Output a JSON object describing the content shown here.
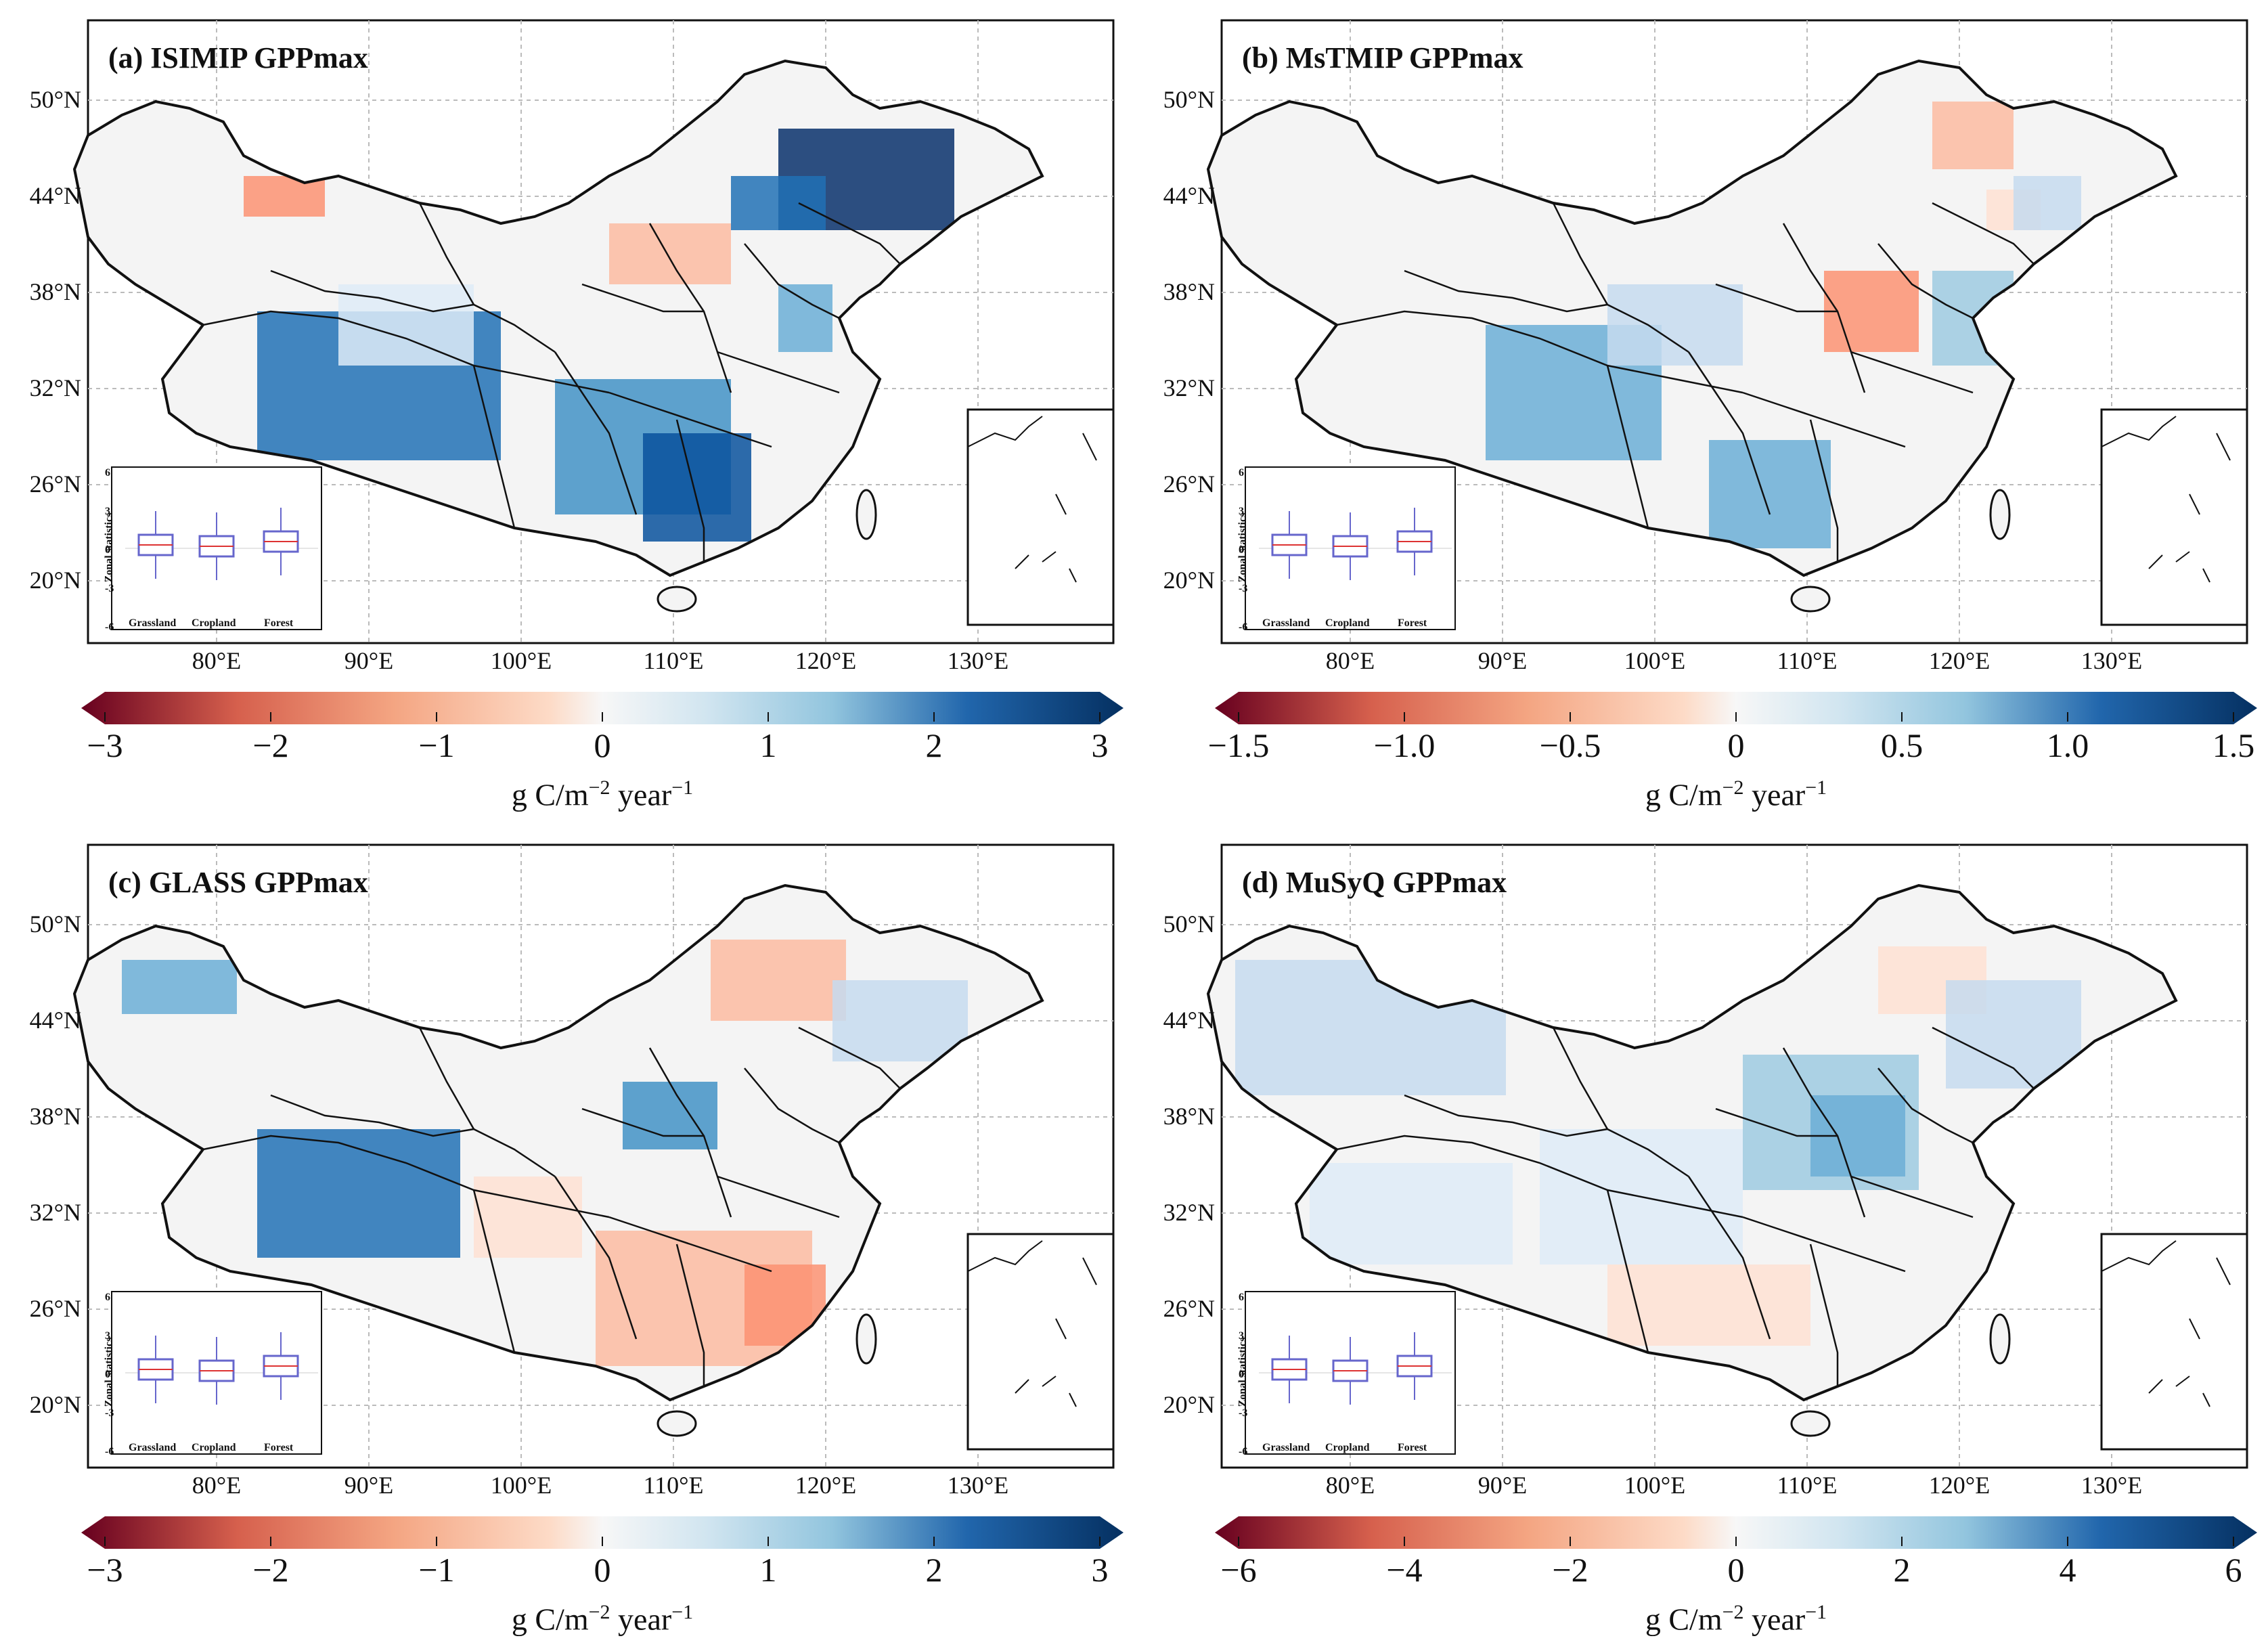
{
  "panels": [
    {
      "id": "a",
      "title": "(a) ISIMIP GPPmax",
      "lat_labels": [
        "50°N",
        "44°N",
        "38°N",
        "32°N",
        "26°N",
        "20°N"
      ],
      "lon_labels": [
        "80°E",
        "90°E",
        "100°E",
        "110°E",
        "120°E",
        "130°E"
      ],
      "colorbar": {
        "ticks": [
          "−3",
          "−2",
          "−1",
          "0",
          "1",
          "2",
          "3"
        ],
        "unit": "g C/m",
        "unit_exp": "−2",
        "unit_tail": " year",
        "unit_tail_exp": "−1"
      },
      "boxplot": {
        "ylabel": "Zonal statistics",
        "yticks": [
          "6",
          "3",
          "0",
          "-3",
          "-6"
        ],
        "categories": [
          "Grassland",
          "Cropland",
          "Forest"
        ]
      }
    },
    {
      "id": "b",
      "title": "(b) MsTMIP GPPmax",
      "lat_labels": [
        "50°N",
        "44°N",
        "38°N",
        "32°N",
        "26°N",
        "20°N"
      ],
      "lon_labels": [
        "80°E",
        "90°E",
        "100°E",
        "110°E",
        "120°E",
        "130°E"
      ],
      "colorbar": {
        "ticks": [
          "−1.5",
          "−1.0",
          "−0.5",
          "0",
          "0.5",
          "1.0",
          "1.5"
        ],
        "unit": "g C/m",
        "unit_exp": "−2",
        "unit_tail": " year",
        "unit_tail_exp": "−1"
      },
      "boxplot": {
        "ylabel": "Zonal statistics",
        "yticks": [
          "6",
          "3",
          "0",
          "-3",
          "-6"
        ],
        "categories": [
          "Grassland",
          "Cropland",
          "Forest"
        ]
      }
    },
    {
      "id": "c",
      "title": "(c) GLASS GPPmax",
      "lat_labels": [
        "50°N",
        "44°N",
        "38°N",
        "32°N",
        "26°N",
        "20°N"
      ],
      "lon_labels": [
        "80°E",
        "90°E",
        "100°E",
        "110°E",
        "120°E",
        "130°E"
      ],
      "colorbar": {
        "ticks": [
          "−3",
          "−2",
          "−1",
          "0",
          "1",
          "2",
          "3"
        ],
        "unit": "g C/m",
        "unit_exp": "−2",
        "unit_tail": " year",
        "unit_tail_exp": "−1"
      },
      "boxplot": {
        "ylabel": "Zonal statistics",
        "yticks": [
          "6",
          "3",
          "0",
          "-3",
          "-6"
        ],
        "categories": [
          "Grassland",
          "Cropland",
          "Forest"
        ]
      }
    },
    {
      "id": "d",
      "title": "(d) MuSyQ GPPmax",
      "lat_labels": [
        "50°N",
        "44°N",
        "38°N",
        "32°N",
        "26°N",
        "20°N"
      ],
      "lon_labels": [
        "80°E",
        "90°E",
        "100°E",
        "110°E",
        "120°E",
        "130°E"
      ],
      "colorbar": {
        "ticks": [
          "−6",
          "−4",
          "−2",
          "0",
          "2",
          "4",
          "6"
        ],
        "unit": "g C/m",
        "unit_exp": "−2",
        "unit_tail": " year",
        "unit_tail_exp": "−1"
      },
      "boxplot": {
        "ylabel": "Zonal statistics",
        "yticks": [
          "6",
          "3",
          "0",
          "-3",
          "-6"
        ],
        "categories": [
          "Grassland",
          "Cropland",
          "Forest"
        ]
      }
    }
  ],
  "colors": {
    "negative": "#8b0a1a",
    "neutral": "#f7f7f7",
    "positive": "#08306b",
    "border": "#111111"
  }
}
